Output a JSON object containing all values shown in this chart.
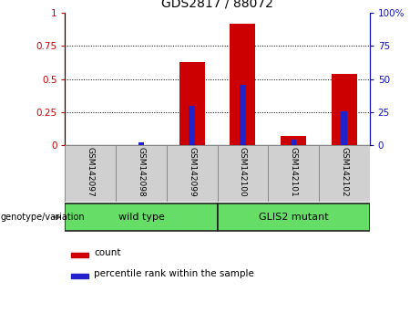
{
  "title": "GDS2817 / 88072",
  "samples": [
    "GSM142097",
    "GSM142098",
    "GSM142099",
    "GSM142100",
    "GSM142101",
    "GSM142102"
  ],
  "count_values": [
    0.0,
    0.0,
    0.63,
    0.92,
    0.07,
    0.54
  ],
  "percentile_values": [
    0.0,
    0.02,
    0.3,
    0.46,
    0.04,
    0.26
  ],
  "bar_color_red": "#cc0000",
  "bar_color_blue": "#2222cc",
  "ylim_left": [
    0,
    1
  ],
  "ylim_right": [
    0,
    100
  ],
  "yticks_left": [
    0,
    0.25,
    0.5,
    0.75,
    1.0
  ],
  "ytick_labels_left": [
    "0",
    "0.25",
    "0.5",
    "0.75",
    "1"
  ],
  "yticks_right": [
    0,
    25,
    50,
    75,
    100
  ],
  "ytick_labels_right": [
    "0",
    "25",
    "50",
    "75",
    "100%"
  ],
  "groups": [
    {
      "label": "wild type",
      "start": 0,
      "end": 3,
      "color": "#66dd66"
    },
    {
      "label": "GLIS2 mutant",
      "start": 3,
      "end": 6,
      "color": "#66dd66"
    }
  ],
  "genotype_label": "genotype/variation",
  "legend_items": [
    {
      "label": "count",
      "color": "#cc0000"
    },
    {
      "label": "percentile rank within the sample",
      "color": "#2222cc"
    }
  ],
  "axis_label_color_left": "#cc0000",
  "axis_label_color_right": "#1111bb",
  "bar_width": 0.5,
  "blue_bar_width": 0.12
}
